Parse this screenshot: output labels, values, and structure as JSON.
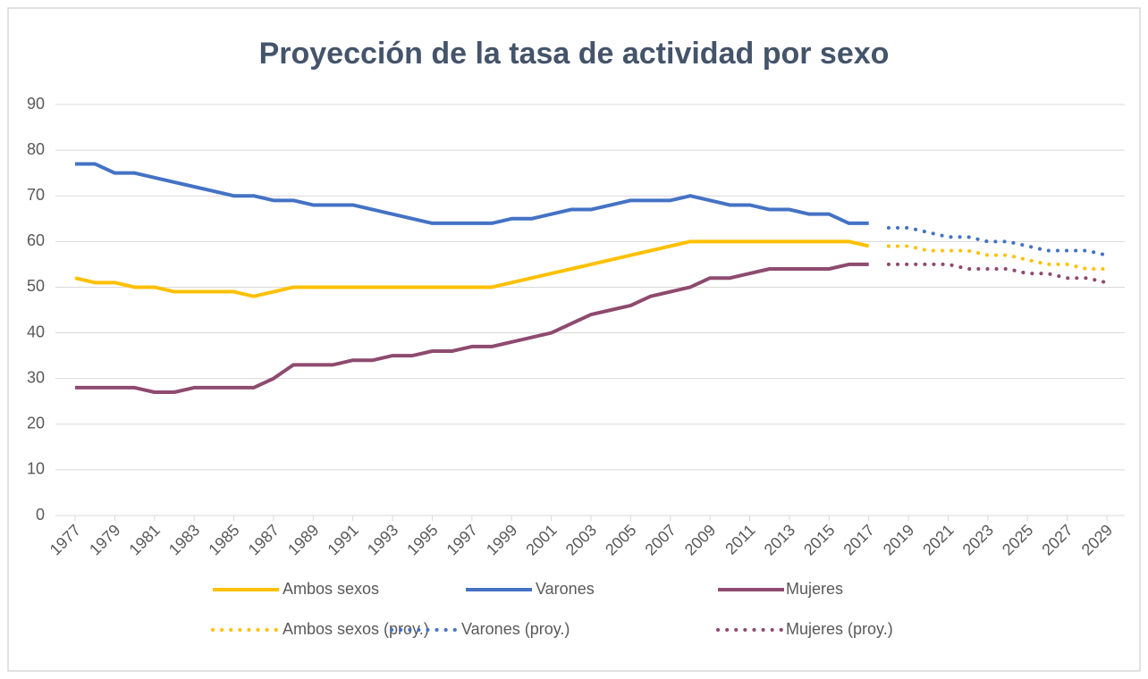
{
  "chart_data": {
    "type": "line",
    "title": "Proyección de la tasa de actividad por sexo",
    "x": [
      1977,
      1978,
      1979,
      1980,
      1981,
      1982,
      1983,
      1984,
      1985,
      1986,
      1987,
      1988,
      1989,
      1990,
      1991,
      1992,
      1993,
      1994,
      1995,
      1996,
      1997,
      1998,
      1999,
      2000,
      2001,
      2002,
      2003,
      2004,
      2005,
      2006,
      2007,
      2008,
      2009,
      2010,
      2011,
      2012,
      2013,
      2014,
      2015,
      2016,
      2017,
      2018,
      2019,
      2020,
      2021,
      2022,
      2023,
      2024,
      2025,
      2026,
      2027,
      2028,
      2029
    ],
    "xlim": [
      1977,
      2029
    ],
    "xticks": [
      1977,
      1979,
      1981,
      1983,
      1985,
      1987,
      1989,
      1991,
      1993,
      1995,
      1997,
      1999,
      2001,
      2003,
      2005,
      2007,
      2009,
      2011,
      2013,
      2015,
      2017,
      2019,
      2021,
      2023,
      2025,
      2027,
      2029
    ],
    "ylim": [
      0,
      90
    ],
    "yticks": [
      0,
      10,
      20,
      30,
      40,
      50,
      60,
      70,
      80,
      90
    ],
    "grid": true,
    "legend": "bottom",
    "series": [
      {
        "name": "Ambos sexos",
        "color": "#ffc000",
        "style": "solid",
        "values": [
          52,
          51,
          51,
          50,
          50,
          49,
          49,
          49,
          49,
          48,
          49,
          50,
          50,
          50,
          50,
          50,
          50,
          50,
          50,
          50,
          50,
          50,
          51,
          52,
          53,
          54,
          55,
          56,
          57,
          58,
          59,
          60,
          60,
          60,
          60,
          60,
          60,
          60,
          60,
          60,
          59,
          null,
          null,
          null,
          null,
          null,
          null,
          null,
          null,
          null,
          null,
          null,
          null
        ]
      },
      {
        "name": "Varones",
        "color": "#4472c4",
        "style": "solid",
        "values": [
          77,
          77,
          75,
          75,
          74,
          73,
          72,
          71,
          70,
          70,
          69,
          69,
          68,
          68,
          68,
          67,
          66,
          65,
          64,
          64,
          64,
          64,
          65,
          65,
          66,
          67,
          67,
          68,
          69,
          69,
          69,
          70,
          69,
          68,
          68,
          67,
          67,
          66,
          66,
          64,
          64,
          null,
          null,
          null,
          null,
          null,
          null,
          null,
          null,
          null,
          null,
          null,
          null
        ]
      },
      {
        "name": "Mujeres",
        "color": "#8e4a6f",
        "style": "solid",
        "values": [
          28,
          28,
          28,
          28,
          27,
          27,
          28,
          28,
          28,
          28,
          30,
          33,
          33,
          33,
          34,
          34,
          35,
          35,
          36,
          36,
          37,
          37,
          38,
          39,
          40,
          42,
          44,
          45,
          46,
          48,
          49,
          50,
          52,
          52,
          53,
          54,
          54,
          54,
          54,
          55,
          55,
          null,
          null,
          null,
          null,
          null,
          null,
          null,
          null,
          null,
          null,
          null,
          null
        ]
      },
      {
        "name": "Ambos sexos (proy.)",
        "color": "#ffc000",
        "style": "dotted",
        "values": [
          null,
          null,
          null,
          null,
          null,
          null,
          null,
          null,
          null,
          null,
          null,
          null,
          null,
          null,
          null,
          null,
          null,
          null,
          null,
          null,
          null,
          null,
          null,
          null,
          null,
          null,
          null,
          null,
          null,
          null,
          null,
          null,
          null,
          null,
          null,
          null,
          null,
          null,
          null,
          null,
          null,
          59,
          59,
          58,
          58,
          58,
          57,
          57,
          56,
          55,
          55,
          54,
          54
        ]
      },
      {
        "name": "Varones (proy.)",
        "color": "#4472c4",
        "style": "dotted",
        "values": [
          null,
          null,
          null,
          null,
          null,
          null,
          null,
          null,
          null,
          null,
          null,
          null,
          null,
          null,
          null,
          null,
          null,
          null,
          null,
          null,
          null,
          null,
          null,
          null,
          null,
          null,
          null,
          null,
          null,
          null,
          null,
          null,
          null,
          null,
          null,
          null,
          null,
          null,
          null,
          null,
          null,
          63,
          63,
          62,
          61,
          61,
          60,
          60,
          59,
          58,
          58,
          58,
          57
        ]
      },
      {
        "name": "Mujeres (proy.)",
        "color": "#8e4a6f",
        "style": "dotted",
        "values": [
          null,
          null,
          null,
          null,
          null,
          null,
          null,
          null,
          null,
          null,
          null,
          null,
          null,
          null,
          null,
          null,
          null,
          null,
          null,
          null,
          null,
          null,
          null,
          null,
          null,
          null,
          null,
          null,
          null,
          null,
          null,
          null,
          null,
          null,
          null,
          null,
          null,
          null,
          null,
          null,
          null,
          55,
          55,
          55,
          55,
          54,
          54,
          54,
          53,
          53,
          52,
          52,
          51
        ]
      }
    ]
  }
}
